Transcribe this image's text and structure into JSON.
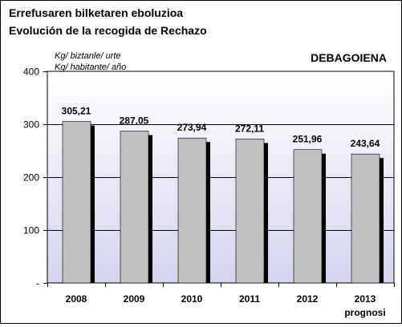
{
  "chart_data": {
    "type": "bar",
    "title": "Errefusaren bilketaren eboluzioa",
    "subtitle": "Evolución de la recogida de Rechazo",
    "ylabel": "Kg/ biztanle/ urte",
    "ylabel_alt": "Kg/ habitante/ año",
    "region_label": "DEBAGOIENA",
    "categories": [
      "2008",
      "2009",
      "2010",
      "2011",
      "2012",
      "2013"
    ],
    "category_sublabels": [
      "",
      "",
      "",
      "",
      "",
      "prognosi"
    ],
    "values": [
      305.21,
      287.05,
      273.94,
      272.11,
      251.96,
      243.64
    ],
    "value_labels": [
      "305,21",
      "287,05",
      "273,94",
      "272,11",
      "251,96",
      "243,64"
    ],
    "ylim": [
      0,
      400
    ],
    "yticks": [
      0,
      100,
      200,
      300,
      400
    ],
    "ytick_labels": [
      "-",
      "100",
      "200",
      "300",
      "400"
    ],
    "grid": true,
    "legend": "none",
    "colors": {
      "bar": "#c0c0c0",
      "bar_shadow": "#000000",
      "plot_bg_top": "#ffffff",
      "plot_bg_bottom": "#d4d4ee",
      "grid": "#000000"
    }
  }
}
